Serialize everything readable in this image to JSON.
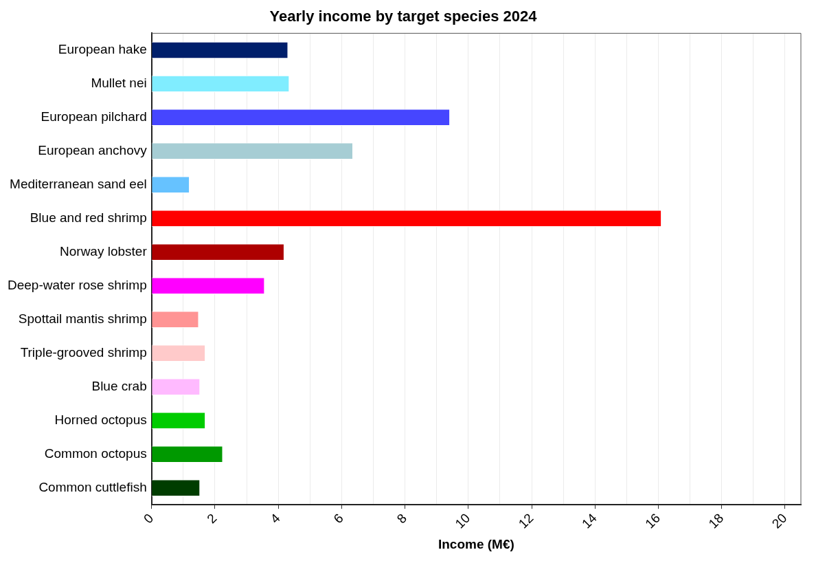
{
  "chart_data": {
    "type": "bar",
    "orientation": "horizontal",
    "title": "Yearly income by target species 2024",
    "xlabel": "Income (M€)",
    "categories": [
      "European hake",
      "Mullet nei",
      "European pilchard",
      "European anchovy",
      "Mediterranean sand eel",
      "Blue and red shrimp",
      "Norway lobster",
      "Deep-water rose shrimp",
      "Spottail mantis shrimp",
      "Triple-grooved shrimp",
      "Blue crab",
      "Horned octopus",
      "Common octopus",
      "Common cuttlefish"
    ],
    "values": [
      4.31,
      4.35,
      9.42,
      6.36,
      1.2,
      16.1,
      4.19,
      3.57,
      1.49,
      1.7,
      1.53,
      1.7,
      2.25,
      1.53
    ],
    "colors": [
      "#001f6b",
      "#80edff",
      "#4646ff",
      "#a6cdd4",
      "#66c2ff",
      "#ff0000",
      "#ad0000",
      "#ff00ff",
      "#ff9494",
      "#ffcaca",
      "#ffbaff",
      "#00cc00",
      "#009900",
      "#003d00"
    ],
    "xlim": [
      0,
      20.5
    ],
    "xticks": [
      0,
      {
        "value": 1,
        "label": null
      },
      2,
      {
        "value": 3,
        "label": null
      },
      4,
      {
        "value": 5,
        "label": null
      },
      6,
      {
        "value": 7,
        "label": null
      },
      8,
      {
        "value": 9,
        "label": null
      },
      10,
      {
        "value": 11,
        "label": null
      },
      12,
      {
        "value": 13,
        "label": null
      },
      14,
      {
        "value": 15,
        "label": null
      },
      16,
      {
        "value": 17,
        "label": null
      },
      18,
      {
        "value": 19,
        "label": null
      },
      20
    ],
    "grid": "x",
    "legend": false
  }
}
